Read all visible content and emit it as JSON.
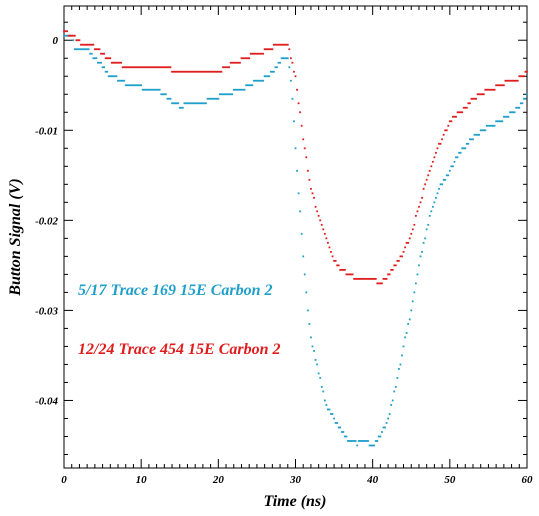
{
  "chart_data": {
    "type": "scatter",
    "title": "",
    "xlabel": "Time (ns)",
    "ylabel": "Button Signal (V)",
    "xlim": [
      0,
      60
    ],
    "ylim": [
      -0.0475,
      0.0038
    ],
    "x_ticks": [
      0,
      10,
      20,
      30,
      40,
      50,
      60
    ],
    "x_tick_labels": [
      "0",
      "10",
      "20",
      "30",
      "40",
      "50",
      "60"
    ],
    "y_ticks": [
      0,
      -0.01,
      -0.02,
      -0.03,
      -0.04
    ],
    "y_tick_labels": [
      "0",
      "-0.01",
      "-0.02",
      "-0.03",
      "-0.04"
    ],
    "grid": false,
    "marker": "dot",
    "series": [
      {
        "name": "5/17 Trace 169 15E Carbon 2",
        "color": "#1f9fc9",
        "step_ns": 0.2,
        "points": [
          [
            0,
            0.0005
          ],
          [
            1,
            0.0005
          ],
          [
            1.5,
            -0.0012
          ],
          [
            3,
            -0.0008
          ],
          [
            4,
            -0.002
          ],
          [
            5,
            -0.0028
          ],
          [
            6,
            -0.004
          ],
          [
            7,
            -0.0043
          ],
          [
            8,
            -0.0048
          ],
          [
            9,
            -0.0052
          ],
          [
            10,
            -0.0052
          ],
          [
            11,
            -0.0055
          ],
          [
            12,
            -0.0055
          ],
          [
            13,
            -0.006
          ],
          [
            14,
            -0.0068
          ],
          [
            15,
            -0.0073
          ],
          [
            16,
            -0.0072
          ],
          [
            17,
            -0.007
          ],
          [
            18,
            -0.0068
          ],
          [
            19,
            -0.0067
          ],
          [
            20,
            -0.0063
          ],
          [
            21,
            -0.006
          ],
          [
            22,
            -0.0057
          ],
          [
            23,
            -0.0055
          ],
          [
            24,
            -0.005
          ],
          [
            25,
            -0.0045
          ],
          [
            26,
            -0.0042
          ],
          [
            27,
            -0.0035
          ],
          [
            28,
            -0.0025
          ],
          [
            28.5,
            -0.0018
          ],
          [
            29,
            -0.002
          ],
          [
            29.5,
            -0.005
          ],
          [
            30,
            -0.012
          ],
          [
            30.5,
            -0.018
          ],
          [
            31,
            -0.024
          ],
          [
            31.5,
            -0.029
          ],
          [
            32,
            -0.033
          ],
          [
            33,
            -0.037
          ],
          [
            34,
            -0.0405
          ],
          [
            35,
            -0.042
          ],
          [
            36,
            -0.0435
          ],
          [
            37,
            -0.0445
          ],
          [
            38,
            -0.0448
          ],
          [
            39,
            -0.0445
          ],
          [
            40,
            -0.045
          ],
          [
            41,
            -0.044
          ],
          [
            42,
            -0.042
          ],
          [
            43,
            -0.0385
          ],
          [
            44,
            -0.034
          ],
          [
            45,
            -0.03
          ],
          [
            46,
            -0.025
          ],
          [
            47,
            -0.021
          ],
          [
            48,
            -0.0178
          ],
          [
            49,
            -0.0158
          ],
          [
            50,
            -0.0145
          ],
          [
            51,
            -0.0128
          ],
          [
            52,
            -0.0118
          ],
          [
            53,
            -0.0108
          ],
          [
            54,
            -0.0102
          ],
          [
            55,
            -0.0095
          ],
          [
            56,
            -0.0092
          ],
          [
            57,
            -0.0087
          ],
          [
            58,
            -0.008
          ],
          [
            59,
            -0.0075
          ],
          [
            60,
            -0.006
          ]
        ]
      },
      {
        "name": "12/24 Trace 454 15E Carbon 2",
        "color": "#e01c1c",
        "step_ns": 0.2,
        "points": [
          [
            0,
            0.0008
          ],
          [
            1,
            0.0007
          ],
          [
            2,
            -0.0002
          ],
          [
            3,
            -0.0005
          ],
          [
            4,
            -0.0008
          ],
          [
            5,
            -0.0015
          ],
          [
            6,
            -0.0022
          ],
          [
            7,
            -0.0027
          ],
          [
            8,
            -0.0028
          ],
          [
            9,
            -0.0028
          ],
          [
            10,
            -0.0028
          ],
          [
            11,
            -0.0028
          ],
          [
            12,
            -0.0028
          ],
          [
            13,
            -0.0028
          ],
          [
            14,
            -0.0033
          ],
          [
            15,
            -0.0037
          ],
          [
            16,
            -0.0037
          ],
          [
            17,
            -0.0037
          ],
          [
            18,
            -0.0037
          ],
          [
            19,
            -0.0037
          ],
          [
            20,
            -0.0035
          ],
          [
            21,
            -0.003
          ],
          [
            22,
            -0.0025
          ],
          [
            23,
            -0.0022
          ],
          [
            24,
            -0.0018
          ],
          [
            25,
            -0.0015
          ],
          [
            26,
            -0.0012
          ],
          [
            27,
            -0.0008
          ],
          [
            28,
            -0.0005
          ],
          [
            29,
            -0.0005
          ],
          [
            30,
            -0.004
          ],
          [
            31,
            -0.011
          ],
          [
            32,
            -0.0165
          ],
          [
            33,
            -0.0195
          ],
          [
            34,
            -0.022
          ],
          [
            35,
            -0.0243
          ],
          [
            36,
            -0.0255
          ],
          [
            37,
            -0.026
          ],
          [
            38,
            -0.0265
          ],
          [
            39,
            -0.0265
          ],
          [
            40,
            -0.0265
          ],
          [
            41,
            -0.027
          ],
          [
            42,
            -0.0262
          ],
          [
            43,
            -0.025
          ],
          [
            44,
            -0.0235
          ],
          [
            45,
            -0.0215
          ],
          [
            46,
            -0.0185
          ],
          [
            47,
            -0.0155
          ],
          [
            48,
            -0.0128
          ],
          [
            49,
            -0.011
          ],
          [
            50,
            -0.009
          ],
          [
            51,
            -0.0082
          ],
          [
            52,
            -0.0075
          ],
          [
            53,
            -0.0065
          ],
          [
            54,
            -0.006
          ],
          [
            55,
            -0.0055
          ],
          [
            56,
            -0.0052
          ],
          [
            57,
            -0.0048
          ],
          [
            58,
            -0.0045
          ],
          [
            59,
            -0.0042
          ],
          [
            60,
            -0.0035
          ]
        ]
      }
    ]
  }
}
